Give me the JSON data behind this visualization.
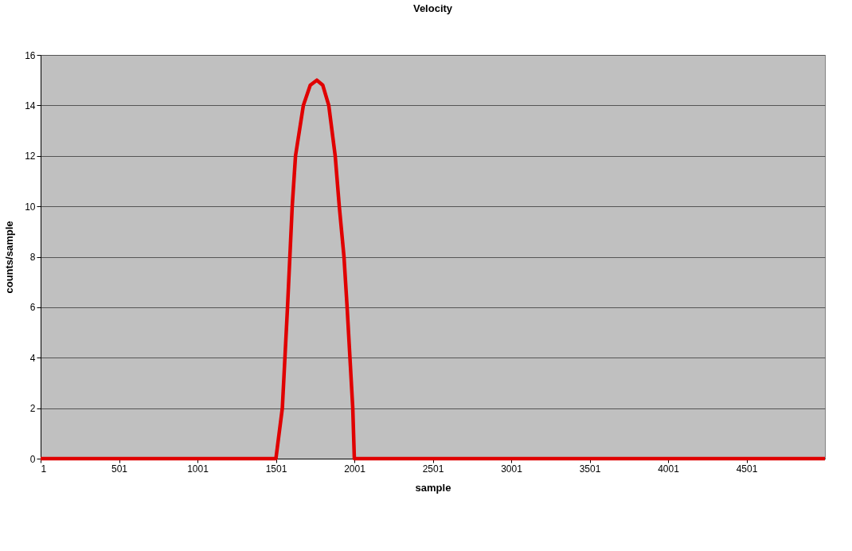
{
  "chart_data": {
    "type": "line",
    "title": "Velocity",
    "xlabel": "sample",
    "ylabel": "counts/sample",
    "x": [
      1,
      1501,
      1542,
      1575,
      1605,
      1626,
      1676,
      1720,
      1762,
      1800,
      1838,
      1879,
      1905,
      1935,
      1955,
      1991,
      2001,
      5001
    ],
    "series": [
      {
        "color": "#e00000",
        "values": [
          0,
          0,
          2,
          6,
          10,
          12,
          14,
          14.8,
          15,
          14.8,
          14,
          12,
          10,
          8,
          6,
          2,
          0,
          0
        ]
      }
    ],
    "xlim": [
      1,
      5001
    ],
    "xticks": [
      1,
      501,
      1001,
      1501,
      2001,
      2501,
      3001,
      3501,
      4001,
      4501
    ],
    "ylim": [
      0,
      16
    ],
    "yticks": [
      0,
      2,
      4,
      6,
      8,
      10,
      12,
      14,
      16
    ],
    "grid": "y",
    "marker": "none",
    "line_style": "solid"
  }
}
